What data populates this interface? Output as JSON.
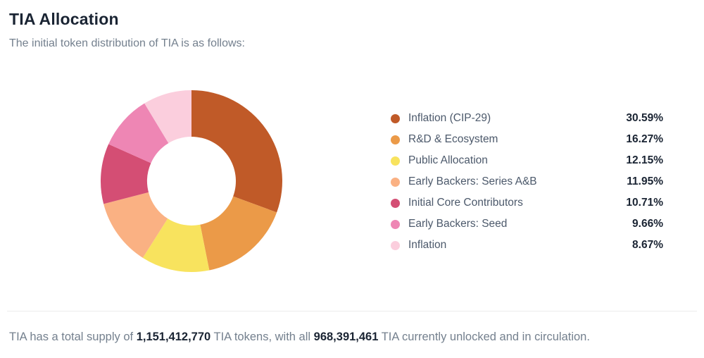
{
  "page": {
    "title": "TIA Allocation",
    "subtitle": "The initial token distribution of TIA is as follows:"
  },
  "chart_data": {
    "type": "pie",
    "title": "TIA Allocation",
    "donut": true,
    "start_angle_deg": -90,
    "direction": "clockwise",
    "outer_radius": 129,
    "inner_radius": 63,
    "legend_position": "right",
    "categories": [
      "Inflation (CIP-29)",
      "R&D & Ecosystem",
      "Public Allocation",
      "Early Backers: Series A&B",
      "Initial Core Contributors",
      "Early Backers: Seed",
      "Inflation"
    ],
    "values": [
      30.59,
      16.27,
      12.15,
      11.95,
      10.71,
      9.66,
      8.67
    ],
    "value_labels": [
      "30.59%",
      "16.27%",
      "12.15%",
      "11.95%",
      "10.71%",
      "9.66%",
      "8.67%"
    ],
    "colors": [
      "#C05A28",
      "#EB9A48",
      "#F8E35E",
      "#FAB183",
      "#D44E74",
      "#EE86B4",
      "#FBCEDD"
    ]
  },
  "footer": {
    "prefix": "TIA has a total supply of ",
    "total_supply": "1,151,412,770",
    "middle": " TIA tokens, with all ",
    "circulating": "968,391,461",
    "suffix": " TIA currently unlocked and in circulation."
  }
}
